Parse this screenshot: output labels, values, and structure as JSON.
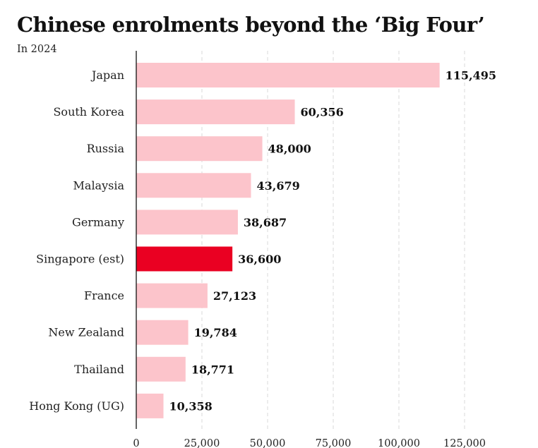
{
  "header": {
    "title": "Chinese enrolments beyond the ‘Big Four’",
    "subtitle": "In 2024"
  },
  "colors": {
    "bar": "#fcc4cb",
    "highlight": "#ea0022",
    "grid": "#d9d9d9",
    "axis": "#111111"
  },
  "chart_data": {
    "type": "bar",
    "orientation": "horizontal",
    "title": "Chinese enrolments beyond the ‘Big Four’",
    "subtitle": "In 2024",
    "categories": [
      "Japan",
      "South Korea",
      "Russia",
      "Malaysia",
      "Germany",
      "Singapore (est)",
      "France",
      "New Zealand",
      "Thailand",
      "Hong Kong (UG)"
    ],
    "values": [
      115495,
      60356,
      48000,
      43679,
      38687,
      36600,
      27123,
      19784,
      18771,
      10358
    ],
    "value_labels": [
      "115,495",
      "60,356",
      "48,000",
      "43,679",
      "38,687",
      "36,600",
      "27,123",
      "19,784",
      "18,771",
      "10,358"
    ],
    "highlight_index": 5,
    "xlim": [
      0,
      125000
    ],
    "xticks": [
      0,
      25000,
      50000,
      75000,
      100000,
      125000
    ],
    "xtick_labels": [
      "0",
      "25,000",
      "50,000",
      "75,000",
      "100,000",
      "125,000"
    ],
    "grid": "vertical dashed",
    "legend": "none",
    "xlabel": "",
    "ylabel": ""
  }
}
